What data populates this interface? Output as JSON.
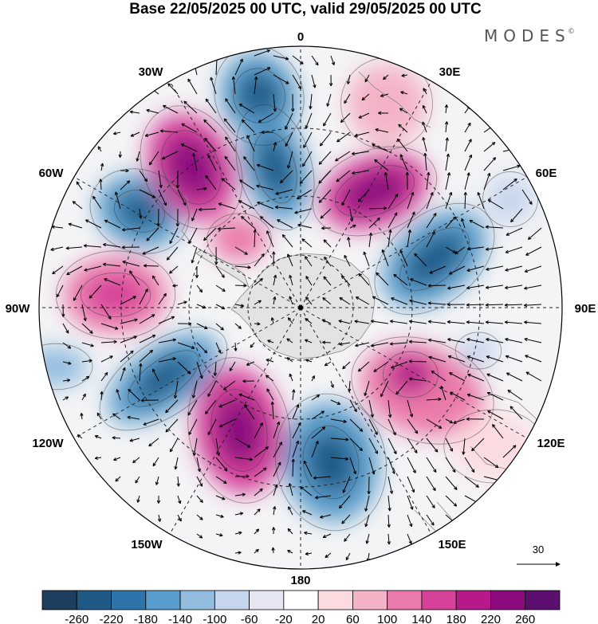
{
  "title": "Base 22/05/2025 00 UTC, valid 29/05/2025 00 UTC",
  "logo": {
    "text": "MODES",
    "mark": "©"
  },
  "longitude_labels": {
    "lon0": "0",
    "lon30e": "30E",
    "lon60e": "60E",
    "lon90e": "90E",
    "lon120e": "120E",
    "lon150e": "150E",
    "lon180": "180",
    "lon150w": "150W",
    "lon120w": "120W",
    "lon90w": "90W",
    "lon60w": "60W",
    "lon30w": "30W"
  },
  "reference_vector": {
    "label": "30"
  },
  "colorbar": {
    "ticks": [
      "-260",
      "-220",
      "-180",
      "-140",
      "-100",
      "-60",
      "-20",
      "20",
      "60",
      "100",
      "140",
      "180",
      "220",
      "260"
    ],
    "colors": [
      "#1d3e5c",
      "#1f5a87",
      "#2d74aa",
      "#5a9ccb",
      "#93bddf",
      "#c5d6ec",
      "#e6e6f3",
      "#ffffff",
      "#fbdbe0",
      "#f4b2c6",
      "#ea7aab",
      "#d6419a",
      "#b7198a",
      "#8b0b7f",
      "#5c0f6e"
    ]
  },
  "colors": {
    "land": "#e5e5e5",
    "frame": "#000000"
  }
}
